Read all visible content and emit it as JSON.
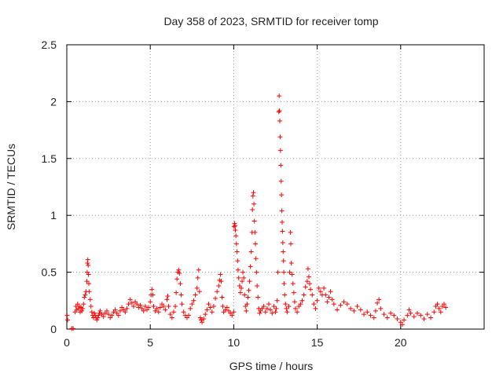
{
  "chart_data": {
    "type": "scatter",
    "title": "Day 358 of 2023, SRMTID for receiver tomp",
    "xlabel": "GPS time / hours",
    "ylabel": "SRMTID / TECUs",
    "xlim": [
      0,
      25
    ],
    "ylim": [
      0,
      2.5
    ],
    "x_ticks": [
      "0",
      "5",
      "10",
      "15",
      "20"
    ],
    "y_ticks": [
      "0",
      "0.5",
      "1",
      "1.5",
      "2",
      "2.5"
    ],
    "x_tick_values": [
      0,
      5,
      10,
      15,
      20
    ],
    "y_tick_values": [
      0,
      0.5,
      1,
      1.5,
      2,
      2.5
    ],
    "grid": true,
    "marker": "plus",
    "marker_color": "#ff0000",
    "series": [
      {
        "name": "SRMTID",
        "points": [
          [
            0.02,
            0.12
          ],
          [
            0.05,
            0.08
          ],
          [
            0.3,
            0.005
          ],
          [
            0.38,
            0.005
          ],
          [
            0.5,
            0.15
          ],
          [
            0.55,
            0.2
          ],
          [
            0.6,
            0.17
          ],
          [
            0.65,
            0.22
          ],
          [
            0.7,
            0.18
          ],
          [
            0.75,
            0.2
          ],
          [
            0.8,
            0.15
          ],
          [
            0.85,
            0.19
          ],
          [
            0.9,
            0.16
          ],
          [
            0.95,
            0.18
          ],
          [
            1.0,
            0.22
          ],
          [
            1.05,
            0.28
          ],
          [
            1.1,
            0.3
          ],
          [
            1.15,
            0.33
          ],
          [
            1.2,
            0.42
          ],
          [
            1.22,
            0.5
          ],
          [
            1.24,
            0.58
          ],
          [
            1.26,
            0.61
          ],
          [
            1.28,
            0.56
          ],
          [
            1.3,
            0.48
          ],
          [
            1.32,
            0.4
          ],
          [
            1.35,
            0.33
          ],
          [
            1.4,
            0.26
          ],
          [
            1.45,
            0.2
          ],
          [
            1.5,
            0.15
          ],
          [
            1.55,
            0.12
          ],
          [
            1.6,
            0.1
          ],
          [
            1.65,
            0.14
          ],
          [
            1.7,
            0.12
          ],
          [
            1.75,
            0.1
          ],
          [
            1.8,
            0.08
          ],
          [
            1.85,
            0.1
          ],
          [
            1.9,
            0.12
          ],
          [
            1.95,
            0.14
          ],
          [
            2.0,
            0.16
          ],
          [
            2.1,
            0.13
          ],
          [
            2.2,
            0.11
          ],
          [
            2.3,
            0.14
          ],
          [
            2.4,
            0.16
          ],
          [
            2.5,
            0.13
          ],
          [
            2.6,
            0.1
          ],
          [
            2.7,
            0.12
          ],
          [
            2.8,
            0.15
          ],
          [
            2.9,
            0.17
          ],
          [
            3.0,
            0.14
          ],
          [
            3.1,
            0.12
          ],
          [
            3.2,
            0.16
          ],
          [
            3.3,
            0.19
          ],
          [
            3.4,
            0.17
          ],
          [
            3.5,
            0.15
          ],
          [
            3.6,
            0.18
          ],
          [
            3.7,
            0.22
          ],
          [
            3.8,
            0.26
          ],
          [
            3.9,
            0.23
          ],
          [
            4.0,
            0.2
          ],
          [
            4.1,
            0.24
          ],
          [
            4.2,
            0.22
          ],
          [
            4.3,
            0.19
          ],
          [
            4.4,
            0.21
          ],
          [
            4.5,
            0.18
          ],
          [
            4.6,
            0.16
          ],
          [
            4.7,
            0.2
          ],
          [
            4.8,
            0.17
          ],
          [
            4.9,
            0.19
          ],
          [
            5.0,
            0.24
          ],
          [
            5.05,
            0.3
          ],
          [
            5.1,
            0.35
          ],
          [
            5.15,
            0.3
          ],
          [
            5.2,
            0.2
          ],
          [
            5.3,
            0.16
          ],
          [
            5.4,
            0.18
          ],
          [
            5.5,
            0.15
          ],
          [
            5.6,
            0.19
          ],
          [
            5.7,
            0.22
          ],
          [
            5.8,
            0.2
          ],
          [
            5.9,
            0.17
          ],
          [
            6.0,
            0.26
          ],
          [
            6.05,
            0.29
          ],
          [
            6.1,
            0.2
          ],
          [
            6.2,
            0.13
          ],
          [
            6.3,
            0.1
          ],
          [
            6.4,
            0.15
          ],
          [
            6.5,
            0.2
          ],
          [
            6.55,
            0.32
          ],
          [
            6.6,
            0.44
          ],
          [
            6.65,
            0.5
          ],
          [
            6.7,
            0.52
          ],
          [
            6.75,
            0.49
          ],
          [
            6.8,
            0.4
          ],
          [
            6.85,
            0.3
          ],
          [
            6.9,
            0.22
          ],
          [
            7.0,
            0.15
          ],
          [
            7.1,
            0.12
          ],
          [
            7.2,
            0.1
          ],
          [
            7.3,
            0.12
          ],
          [
            7.4,
            0.18
          ],
          [
            7.5,
            0.22
          ],
          [
            7.6,
            0.25
          ],
          [
            7.7,
            0.3
          ],
          [
            7.8,
            0.36
          ],
          [
            7.85,
            0.45
          ],
          [
            7.9,
            0.52
          ],
          [
            7.95,
            0.33
          ],
          [
            8.0,
            0.1
          ],
          [
            8.05,
            0.08
          ],
          [
            8.1,
            0.06
          ],
          [
            8.2,
            0.09
          ],
          [
            8.3,
            0.13
          ],
          [
            8.4,
            0.17
          ],
          [
            8.5,
            0.22
          ],
          [
            8.6,
            0.19
          ],
          [
            8.7,
            0.15
          ],
          [
            8.8,
            0.2
          ],
          [
            8.9,
            0.27
          ],
          [
            9.0,
            0.33
          ],
          [
            9.1,
            0.38
          ],
          [
            9.15,
            0.43
          ],
          [
            9.2,
            0.48
          ],
          [
            9.25,
            0.42
          ],
          [
            9.3,
            0.28
          ],
          [
            9.35,
            0.2
          ],
          [
            9.4,
            0.15
          ],
          [
            9.5,
            0.17
          ],
          [
            9.6,
            0.19
          ],
          [
            9.7,
            0.16
          ],
          [
            9.8,
            0.14
          ],
          [
            9.9,
            0.12
          ],
          [
            10.0,
            0.15
          ],
          [
            10.02,
            0.9
          ],
          [
            10.05,
            0.93
          ],
          [
            10.08,
            0.91
          ],
          [
            10.1,
            0.87
          ],
          [
            10.13,
            0.82
          ],
          [
            10.16,
            0.75
          ],
          [
            10.2,
            0.68
          ],
          [
            10.23,
            0.6
          ],
          [
            10.26,
            0.52
          ],
          [
            10.3,
            0.45
          ],
          [
            10.35,
            0.38
          ],
          [
            10.4,
            0.32
          ],
          [
            10.45,
            0.36
          ],
          [
            10.5,
            0.42
          ],
          [
            10.55,
            0.5
          ],
          [
            10.6,
            0.45
          ],
          [
            10.65,
            0.3
          ],
          [
            10.7,
            0.2
          ],
          [
            10.75,
            0.16
          ],
          [
            10.8,
            0.22
          ],
          [
            10.85,
            0.28
          ],
          [
            10.9,
            0.34
          ],
          [
            10.95,
            0.42
          ],
          [
            11.0,
            0.55
          ],
          [
            11.05,
            0.68
          ],
          [
            11.1,
            0.85
          ],
          [
            11.12,
            1.05
          ],
          [
            11.15,
            1.17
          ],
          [
            11.18,
            1.2
          ],
          [
            11.21,
            1.1
          ],
          [
            11.24,
            0.95
          ],
          [
            11.27,
            0.85
          ],
          [
            11.3,
            0.75
          ],
          [
            11.33,
            0.62
          ],
          [
            11.36,
            0.5
          ],
          [
            11.4,
            0.38
          ],
          [
            11.45,
            0.28
          ],
          [
            11.5,
            0.18
          ],
          [
            11.55,
            0.14
          ],
          [
            11.6,
            0.16
          ],
          [
            11.7,
            0.18
          ],
          [
            11.8,
            0.2
          ],
          [
            11.9,
            0.15
          ],
          [
            12.0,
            0.18
          ],
          [
            12.1,
            0.22
          ],
          [
            12.2,
            0.17
          ],
          [
            12.3,
            0.14
          ],
          [
            12.4,
            0.2
          ],
          [
            12.5,
            0.15
          ],
          [
            12.55,
            0.18
          ],
          [
            12.6,
            0.25
          ],
          [
            12.65,
            0.5
          ],
          [
            12.7,
            1.91
          ],
          [
            12.72,
            2.05
          ],
          [
            12.74,
            1.92
          ],
          [
            12.76,
            1.83
          ],
          [
            12.78,
            1.69
          ],
          [
            12.8,
            1.57
          ],
          [
            12.82,
            1.44
          ],
          [
            12.84,
            1.3
          ],
          [
            12.86,
            1.18
          ],
          [
            12.88,
            1.04
          ],
          [
            12.9,
            0.94
          ],
          [
            12.92,
            0.86
          ],
          [
            12.94,
            0.76
          ],
          [
            12.96,
            0.68
          ],
          [
            12.98,
            0.6
          ],
          [
            13.0,
            0.5
          ],
          [
            13.02,
            0.4
          ],
          [
            13.05,
            0.3
          ],
          [
            13.1,
            0.22
          ],
          [
            13.15,
            0.18
          ],
          [
            13.2,
            0.15
          ],
          [
            13.3,
            0.2
          ],
          [
            13.35,
            0.5
          ],
          [
            13.4,
            0.85
          ],
          [
            13.42,
            0.75
          ],
          [
            13.45,
            0.58
          ],
          [
            13.5,
            0.48
          ],
          [
            13.55,
            0.4
          ],
          [
            13.6,
            0.32
          ],
          [
            13.65,
            0.24
          ],
          [
            13.7,
            0.18
          ],
          [
            13.8,
            0.15
          ],
          [
            13.9,
            0.2
          ],
          [
            14.0,
            0.22
          ],
          [
            14.1,
            0.25
          ],
          [
            14.2,
            0.3
          ],
          [
            14.3,
            0.37
          ],
          [
            14.4,
            0.42
          ],
          [
            14.45,
            0.53
          ],
          [
            14.5,
            0.46
          ],
          [
            14.55,
            0.4
          ],
          [
            14.6,
            0.35
          ],
          [
            14.7,
            0.3
          ],
          [
            14.8,
            0.22
          ],
          [
            14.9,
            0.18
          ],
          [
            15.0,
            0.25
          ],
          [
            15.1,
            0.36
          ],
          [
            15.2,
            0.33
          ],
          [
            15.3,
            0.3
          ],
          [
            15.4,
            0.36
          ],
          [
            15.5,
            0.3
          ],
          [
            15.6,
            0.24
          ],
          [
            15.7,
            0.28
          ],
          [
            15.8,
            0.33
          ],
          [
            15.9,
            0.26
          ],
          [
            16.0,
            0.22
          ],
          [
            16.2,
            0.17
          ],
          [
            16.4,
            0.21
          ],
          [
            16.6,
            0.24
          ],
          [
            16.8,
            0.22
          ],
          [
            17.0,
            0.18
          ],
          [
            17.2,
            0.16
          ],
          [
            17.4,
            0.2
          ],
          [
            17.6,
            0.17
          ],
          [
            17.8,
            0.13
          ],
          [
            18.0,
            0.15
          ],
          [
            18.2,
            0.12
          ],
          [
            18.4,
            0.1
          ],
          [
            18.5,
            0.16
          ],
          [
            18.6,
            0.23
          ],
          [
            18.7,
            0.26
          ],
          [
            18.8,
            0.18
          ],
          [
            19.0,
            0.13
          ],
          [
            19.2,
            0.1
          ],
          [
            19.4,
            0.14
          ],
          [
            19.6,
            0.12
          ],
          [
            19.8,
            0.09
          ],
          [
            20.0,
            0.06
          ],
          [
            20.1,
            0.04
          ],
          [
            20.2,
            0.08
          ],
          [
            20.4,
            0.12
          ],
          [
            20.5,
            0.17
          ],
          [
            20.6,
            0.14
          ],
          [
            20.8,
            0.11
          ],
          [
            21.0,
            0.14
          ],
          [
            21.2,
            0.12
          ],
          [
            21.4,
            0.09
          ],
          [
            21.6,
            0.13
          ],
          [
            21.8,
            0.1
          ],
          [
            22.0,
            0.15
          ],
          [
            22.1,
            0.2
          ],
          [
            22.2,
            0.22
          ],
          [
            22.3,
            0.18
          ],
          [
            22.4,
            0.15
          ],
          [
            22.5,
            0.2
          ],
          [
            22.6,
            0.22
          ],
          [
            22.7,
            0.19
          ]
        ]
      }
    ]
  }
}
